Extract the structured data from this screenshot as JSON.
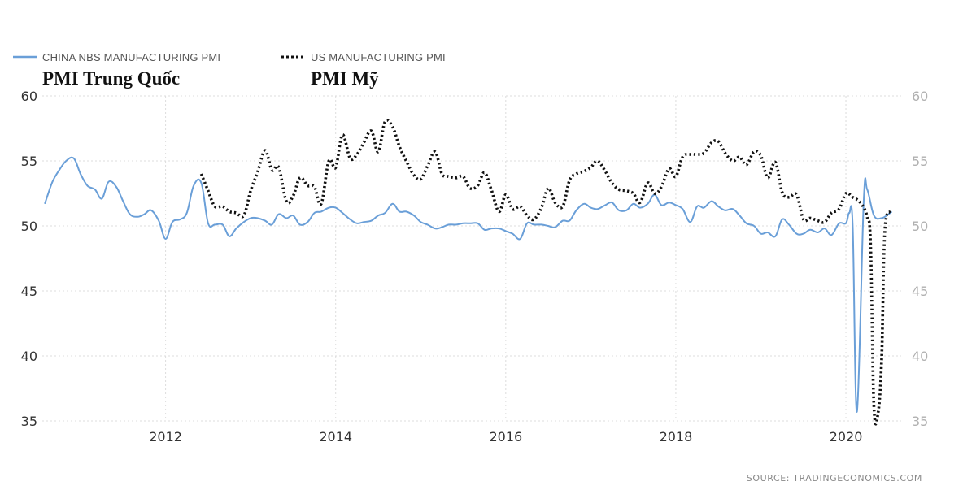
{
  "legend": {
    "china_label": "CHINA NBS MANUFACTURING PMI",
    "us_label": "US MANUFACTURING PMI"
  },
  "annotations": {
    "china": "PMI Trung Quốc",
    "us": "PMI Mỹ"
  },
  "source_text": "SOURCE:  TRADINGECONOMICS.COM",
  "colors": {
    "china": "#6a9fd8",
    "us": "#111111"
  },
  "chart_data": {
    "type": "line",
    "title": "",
    "xlabel": "",
    "ylabel": "",
    "ylim": [
      35,
      60
    ],
    "xlim": [
      2010.55,
      2020.65
    ],
    "yticks": [
      35,
      40,
      45,
      50,
      55,
      60
    ],
    "xticks": [
      "2012",
      "2014",
      "2016",
      "2018",
      "2020"
    ],
    "grid": true,
    "legend_position": "top-left",
    "series": [
      {
        "name": "CHINA NBS MANUFACTURING PMI",
        "style": "solid",
        "points": [
          [
            2010.58,
            51.7
          ],
          [
            2010.67,
            53.4
          ],
          [
            2010.75,
            54.3
          ],
          [
            2010.83,
            55.0
          ],
          [
            2010.92,
            55.2
          ],
          [
            2011.0,
            54.0
          ],
          [
            2011.08,
            53.1
          ],
          [
            2011.17,
            52.8
          ],
          [
            2011.25,
            52.1
          ],
          [
            2011.33,
            53.4
          ],
          [
            2011.42,
            53.0
          ],
          [
            2011.5,
            51.9
          ],
          [
            2011.58,
            50.9
          ],
          [
            2011.67,
            50.7
          ],
          [
            2011.75,
            50.9
          ],
          [
            2011.83,
            51.2
          ],
          [
            2011.92,
            50.4
          ],
          [
            2012.0,
            49.0
          ],
          [
            2012.08,
            50.3
          ],
          [
            2012.17,
            50.5
          ],
          [
            2012.25,
            51.0
          ],
          [
            2012.33,
            53.1
          ],
          [
            2012.42,
            53.3
          ],
          [
            2012.5,
            50.2
          ],
          [
            2012.58,
            50.1
          ],
          [
            2012.67,
            50.1
          ],
          [
            2012.75,
            49.2
          ],
          [
            2012.83,
            49.8
          ],
          [
            2012.92,
            50.3
          ],
          [
            2013.0,
            50.6
          ],
          [
            2013.08,
            50.6
          ],
          [
            2013.17,
            50.4
          ],
          [
            2013.25,
            50.1
          ],
          [
            2013.33,
            50.9
          ],
          [
            2013.42,
            50.6
          ],
          [
            2013.5,
            50.8
          ],
          [
            2013.58,
            50.1
          ],
          [
            2013.67,
            50.3
          ],
          [
            2013.75,
            51.0
          ],
          [
            2013.83,
            51.1
          ],
          [
            2013.92,
            51.4
          ],
          [
            2014.0,
            51.4
          ],
          [
            2014.08,
            51.0
          ],
          [
            2014.17,
            50.5
          ],
          [
            2014.25,
            50.2
          ],
          [
            2014.33,
            50.3
          ],
          [
            2014.42,
            50.4
          ],
          [
            2014.5,
            50.8
          ],
          [
            2014.58,
            51.0
          ],
          [
            2014.67,
            51.7
          ],
          [
            2014.75,
            51.1
          ],
          [
            2014.83,
            51.1
          ],
          [
            2014.92,
            50.8
          ],
          [
            2015.0,
            50.3
          ],
          [
            2015.08,
            50.1
          ],
          [
            2015.17,
            49.8
          ],
          [
            2015.25,
            49.9
          ],
          [
            2015.33,
            50.1
          ],
          [
            2015.42,
            50.1
          ],
          [
            2015.5,
            50.2
          ],
          [
            2015.58,
            50.2
          ],
          [
            2015.67,
            50.2
          ],
          [
            2015.75,
            49.7
          ],
          [
            2015.83,
            49.8
          ],
          [
            2015.92,
            49.8
          ],
          [
            2016.0,
            49.6
          ],
          [
            2016.08,
            49.4
          ],
          [
            2016.17,
            49.0
          ],
          [
            2016.25,
            50.2
          ],
          [
            2016.33,
            50.1
          ],
          [
            2016.42,
            50.1
          ],
          [
            2016.5,
            50.0
          ],
          [
            2016.58,
            49.9
          ],
          [
            2016.67,
            50.4
          ],
          [
            2016.75,
            50.4
          ],
          [
            2016.83,
            51.2
          ],
          [
            2016.92,
            51.7
          ],
          [
            2017.0,
            51.4
          ],
          [
            2017.08,
            51.3
          ],
          [
            2017.17,
            51.6
          ],
          [
            2017.25,
            51.8
          ],
          [
            2017.33,
            51.2
          ],
          [
            2017.42,
            51.2
          ],
          [
            2017.5,
            51.7
          ],
          [
            2017.58,
            51.4
          ],
          [
            2017.67,
            51.7
          ],
          [
            2017.75,
            52.4
          ],
          [
            2017.83,
            51.6
          ],
          [
            2017.92,
            51.8
          ],
          [
            2018.0,
            51.6
          ],
          [
            2018.08,
            51.3
          ],
          [
            2018.17,
            50.3
          ],
          [
            2018.25,
            51.5
          ],
          [
            2018.33,
            51.4
          ],
          [
            2018.42,
            51.9
          ],
          [
            2018.5,
            51.5
          ],
          [
            2018.58,
            51.2
          ],
          [
            2018.67,
            51.3
          ],
          [
            2018.75,
            50.8
          ],
          [
            2018.83,
            50.2
          ],
          [
            2018.92,
            50.0
          ],
          [
            2019.0,
            49.4
          ],
          [
            2019.08,
            49.5
          ],
          [
            2019.17,
            49.2
          ],
          [
            2019.25,
            50.5
          ],
          [
            2019.33,
            50.1
          ],
          [
            2019.42,
            49.4
          ],
          [
            2019.5,
            49.4
          ],
          [
            2019.58,
            49.7
          ],
          [
            2019.67,
            49.5
          ],
          [
            2019.75,
            49.8
          ],
          [
            2019.83,
            49.3
          ],
          [
            2019.92,
            50.2
          ],
          [
            2020.0,
            50.2
          ],
          [
            2020.04,
            51.0
          ],
          [
            2020.08,
            50.0
          ],
          [
            2020.13,
            35.7
          ],
          [
            2020.21,
            52.0
          ],
          [
            2020.25,
            52.8
          ],
          [
            2020.33,
            50.8
          ],
          [
            2020.42,
            50.6
          ],
          [
            2020.5,
            50.9
          ],
          [
            2020.54,
            51.1
          ]
        ]
      },
      {
        "name": "US MANUFACTURING PMI",
        "style": "dotted",
        "points": [
          [
            2012.42,
            54.0
          ],
          [
            2012.5,
            52.7
          ],
          [
            2012.58,
            51.5
          ],
          [
            2012.67,
            51.5
          ],
          [
            2012.75,
            51.1
          ],
          [
            2012.83,
            51.0
          ],
          [
            2012.92,
            50.8
          ],
          [
            2013.0,
            52.7
          ],
          [
            2013.08,
            54.1
          ],
          [
            2013.17,
            55.8
          ],
          [
            2013.25,
            54.3
          ],
          [
            2013.33,
            54.5
          ],
          [
            2013.42,
            51.9
          ],
          [
            2013.5,
            52.3
          ],
          [
            2013.58,
            53.7
          ],
          [
            2013.67,
            53.1
          ],
          [
            2013.75,
            53.0
          ],
          [
            2013.83,
            51.7
          ],
          [
            2013.92,
            55.0
          ],
          [
            2014.0,
            54.5
          ],
          [
            2014.08,
            57.0
          ],
          [
            2014.17,
            55.2
          ],
          [
            2014.25,
            55.5
          ],
          [
            2014.33,
            56.4
          ],
          [
            2014.42,
            57.3
          ],
          [
            2014.5,
            55.7
          ],
          [
            2014.58,
            58.0
          ],
          [
            2014.67,
            57.6
          ],
          [
            2014.75,
            56.1
          ],
          [
            2014.83,
            55.0
          ],
          [
            2014.92,
            53.9
          ],
          [
            2015.0,
            53.6
          ],
          [
            2015.08,
            54.6
          ],
          [
            2015.17,
            55.7
          ],
          [
            2015.25,
            54.0
          ],
          [
            2015.33,
            53.8
          ],
          [
            2015.42,
            53.7
          ],
          [
            2015.5,
            53.8
          ],
          [
            2015.58,
            52.9
          ],
          [
            2015.67,
            53.1
          ],
          [
            2015.75,
            54.1
          ],
          [
            2015.83,
            52.8
          ],
          [
            2015.92,
            51.1
          ],
          [
            2016.0,
            52.4
          ],
          [
            2016.08,
            51.3
          ],
          [
            2016.17,
            51.5
          ],
          [
            2016.25,
            50.8
          ],
          [
            2016.33,
            50.5
          ],
          [
            2016.42,
            51.4
          ],
          [
            2016.5,
            52.9
          ],
          [
            2016.58,
            51.8
          ],
          [
            2016.67,
            51.5
          ],
          [
            2016.75,
            53.5
          ],
          [
            2016.83,
            54.0
          ],
          [
            2016.92,
            54.2
          ],
          [
            2017.0,
            54.5
          ],
          [
            2017.08,
            55.0
          ],
          [
            2017.17,
            54.2
          ],
          [
            2017.25,
            53.3
          ],
          [
            2017.33,
            52.8
          ],
          [
            2017.42,
            52.7
          ],
          [
            2017.5,
            52.5
          ],
          [
            2017.58,
            51.8
          ],
          [
            2017.67,
            53.3
          ],
          [
            2017.75,
            52.5
          ],
          [
            2017.83,
            53.0
          ],
          [
            2017.92,
            54.4
          ],
          [
            2018.0,
            53.8
          ],
          [
            2018.08,
            55.3
          ],
          [
            2018.17,
            55.5
          ],
          [
            2018.25,
            55.5
          ],
          [
            2018.33,
            55.6
          ],
          [
            2018.42,
            56.4
          ],
          [
            2018.5,
            56.5
          ],
          [
            2018.58,
            55.6
          ],
          [
            2018.67,
            55.0
          ],
          [
            2018.75,
            55.3
          ],
          [
            2018.83,
            54.7
          ],
          [
            2018.92,
            55.7
          ],
          [
            2019.0,
            55.4
          ],
          [
            2019.08,
            53.7
          ],
          [
            2019.17,
            54.9
          ],
          [
            2019.25,
            52.6
          ],
          [
            2019.33,
            52.2
          ],
          [
            2019.42,
            52.4
          ],
          [
            2019.5,
            50.5
          ],
          [
            2019.58,
            50.6
          ],
          [
            2019.67,
            50.4
          ],
          [
            2019.75,
            50.3
          ],
          [
            2019.83,
            51.0
          ],
          [
            2019.92,
            51.3
          ],
          [
            2020.0,
            52.5
          ],
          [
            2020.08,
            52.2
          ],
          [
            2020.17,
            51.8
          ],
          [
            2020.25,
            50.7
          ],
          [
            2020.29,
            48.5
          ],
          [
            2020.33,
            36.1
          ],
          [
            2020.38,
            35.7
          ],
          [
            2020.42,
            39.8
          ],
          [
            2020.46,
            49.8
          ],
          [
            2020.54,
            51.0
          ]
        ]
      }
    ]
  }
}
